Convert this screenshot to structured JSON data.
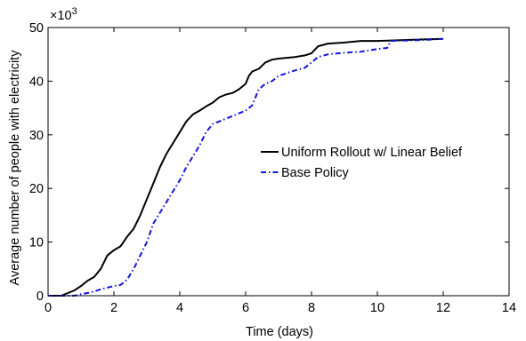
{
  "chart_data": {
    "type": "line",
    "xlabel": "Time (days)",
    "ylabel": "Average number of people with electricity",
    "y_multiplier": "×10",
    "y_multiplier_exp": "3",
    "xlim": [
      0,
      14
    ],
    "ylim": [
      0,
      50
    ],
    "x_ticks": [
      0,
      2,
      4,
      6,
      8,
      10,
      12,
      14
    ],
    "y_ticks": [
      0,
      10,
      20,
      30,
      40,
      50
    ],
    "grid": false,
    "legend_position": "right",
    "series": [
      {
        "name": "Uniform Rollout w/ Linear Belief",
        "color": "#000000",
        "style": "solid",
        "x": [
          0,
          0.4,
          0.6,
          0.8,
          1.0,
          1.2,
          1.4,
          1.6,
          1.8,
          2.0,
          2.2,
          2.4,
          2.6,
          2.8,
          3.0,
          3.2,
          3.4,
          3.6,
          3.8,
          4.0,
          4.2,
          4.4,
          4.6,
          4.8,
          5.0,
          5.2,
          5.4,
          5.6,
          5.8,
          6.0,
          6.1,
          6.2,
          6.4,
          6.6,
          6.8,
          7.0,
          7.5,
          7.8,
          8.0,
          8.2,
          8.5,
          9.0,
          9.5,
          10.0,
          10.5,
          11.0,
          11.5,
          12.0
        ],
        "y": [
          0,
          0,
          0.5,
          1.0,
          1.8,
          2.8,
          3.5,
          5.0,
          7.5,
          8.5,
          9.2,
          11.0,
          12.5,
          15.0,
          18.0,
          21.0,
          24.0,
          26.5,
          28.5,
          30.5,
          32.5,
          33.8,
          34.5,
          35.3,
          36.0,
          37.0,
          37.5,
          37.8,
          38.5,
          39.5,
          41.0,
          41.8,
          42.3,
          43.5,
          44.0,
          44.2,
          44.5,
          44.8,
          45.2,
          46.5,
          47.0,
          47.2,
          47.5,
          47.5,
          47.6,
          47.7,
          47.8,
          47.9
        ]
      },
      {
        "name": "Base Policy",
        "color": "#1515d6",
        "style": "dashdot",
        "x": [
          0,
          0.8,
          1.0,
          1.2,
          1.4,
          1.6,
          1.8,
          2.0,
          2.2,
          2.4,
          2.6,
          2.8,
          3.0,
          3.2,
          3.4,
          3.6,
          3.8,
          4.0,
          4.2,
          4.4,
          4.6,
          4.8,
          5.0,
          5.2,
          5.4,
          5.6,
          5.8,
          6.0,
          6.2,
          6.3,
          6.4,
          6.6,
          6.8,
          7.0,
          7.5,
          7.8,
          8.0,
          8.2,
          8.5,
          9.0,
          9.5,
          10.0,
          10.3,
          10.4,
          11.0,
          11.5,
          12.0
        ],
        "y": [
          0,
          0,
          0.3,
          0.5,
          0.8,
          1.2,
          1.5,
          1.8,
          2.0,
          3.0,
          5.0,
          7.5,
          10.0,
          13.5,
          15.5,
          17.5,
          19.5,
          21.5,
          24.0,
          26.0,
          28.0,
          30.5,
          32.0,
          32.5,
          33.0,
          33.5,
          34.0,
          34.5,
          35.5,
          37.0,
          38.5,
          39.5,
          40.0,
          41.0,
          42.0,
          42.5,
          43.5,
          44.5,
          45.0,
          45.3,
          45.5,
          46.0,
          46.2,
          47.5,
          47.6,
          47.7,
          47.9
        ]
      }
    ]
  }
}
